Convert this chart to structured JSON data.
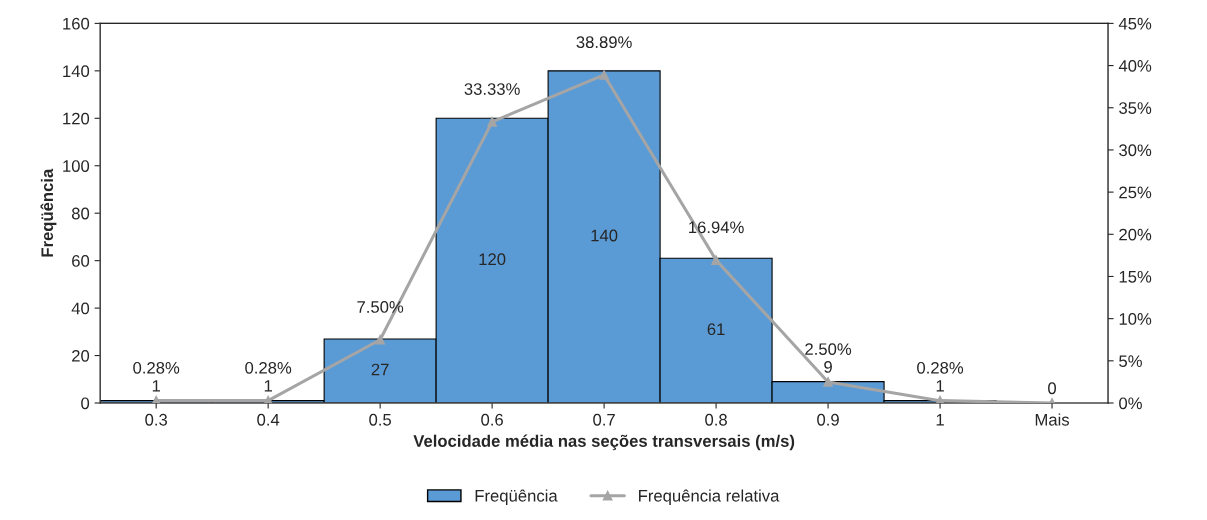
{
  "chart_data": {
    "type": "bar",
    "xlabel": "Velocidade média nas seções transversais (m/s)",
    "ylabel": "Freqüência",
    "categories": [
      "0.3",
      "0.4",
      "0.5",
      "0.6",
      "0.7",
      "0.8",
      "0.9",
      "1",
      "Mais"
    ],
    "series": [
      {
        "name": "Freqüência",
        "color": "#5b9bd5",
        "values": [
          1,
          1,
          27,
          120,
          140,
          61,
          9,
          1,
          0
        ],
        "value_labels": [
          "1",
          "1",
          "27",
          "120",
          "140",
          "61",
          "9",
          "1",
          "0"
        ]
      },
      {
        "name": "Frequência relativa",
        "type": "line",
        "axis": "y2",
        "color": "#a5a5a5",
        "marker": "triangle",
        "values": [
          0.28,
          0.28,
          7.5,
          33.33,
          38.89,
          16.94,
          2.5,
          0.28,
          0
        ],
        "value_labels": [
          "0.28%",
          "0.28%",
          "7.50%",
          "33.33%",
          "38.89%",
          "16.94%",
          "2.50%",
          "0.28%",
          null
        ]
      }
    ],
    "ylim": [
      0,
      160
    ],
    "yticks": [
      0,
      20,
      40,
      60,
      80,
      100,
      120,
      140,
      160
    ],
    "y2lim": [
      0,
      45
    ],
    "y2ticks": [
      {
        "value": 0,
        "label": "0%"
      },
      {
        "value": 5,
        "label": "5%"
      },
      {
        "value": 10,
        "label": "10%"
      },
      {
        "value": 15,
        "label": "15%"
      },
      {
        "value": 20,
        "label": "20%"
      },
      {
        "value": 25,
        "label": "25%"
      },
      {
        "value": 30,
        "label": "30%"
      },
      {
        "value": 35,
        "label": "35%"
      },
      {
        "value": 40,
        "label": "40%"
      },
      {
        "value": 45,
        "label": "45%"
      }
    ],
    "grid": false,
    "legend": "bottom"
  }
}
